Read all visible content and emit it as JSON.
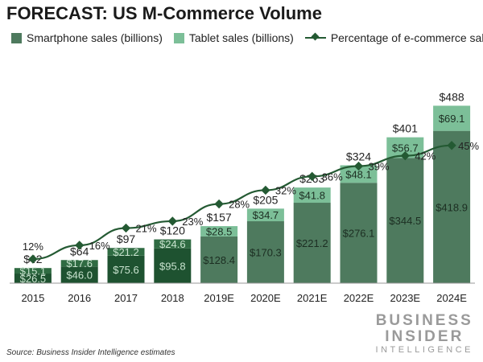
{
  "title": "FORECAST: US M-Commerce Volume",
  "colors": {
    "smartphone": "#4e7a5e",
    "smartphone_dark": "#1e5230",
    "tablet": "#7cbf98",
    "tablet_dark": "#2f6b42",
    "line": "#245a33"
  },
  "legend": {
    "smartphone": "Smartphone sales (billions)",
    "tablet": "Tablet sales (billions)",
    "percentage": "Percentage of e-commerce sales"
  },
  "chart_data": {
    "type": "bar",
    "stacked": true,
    "categories": [
      "2015",
      "2016",
      "2017",
      "2018",
      "2019E",
      "2020E",
      "2021E",
      "2022E",
      "2023E",
      "2024E"
    ],
    "actual_years": [
      "2015",
      "2016",
      "2017",
      "2018"
    ],
    "series": [
      {
        "name": "Smartphone sales (billions)",
        "values": [
          26.5,
          46.0,
          75.6,
          95.8,
          128.4,
          170.3,
          221.2,
          276.1,
          344.5,
          418.9
        ],
        "labels": [
          "$26.5",
          "$46.0",
          "$75.6",
          "$95.8",
          "$128.4",
          "$170.3",
          "$221.2",
          "$276.1",
          "$344.5",
          "$418.9"
        ]
      },
      {
        "name": "Tablet sales (billions)",
        "values": [
          15.1,
          17.6,
          21.2,
          24.6,
          28.5,
          34.7,
          41.8,
          48.1,
          56.7,
          69.1
        ],
        "labels": [
          "$15.1",
          "$17.6",
          "$21.2",
          "$24.6",
          "$28.5",
          "$34.7",
          "$41.8",
          "$48.1",
          "$56.7",
          "$69.1"
        ]
      }
    ],
    "totals": [
      42,
      64,
      97,
      120,
      157,
      205,
      263,
      324,
      401,
      488
    ],
    "total_labels": [
      "$42",
      "$64",
      "$97",
      "$120",
      "$157",
      "$205",
      "$263",
      "$324",
      "$401",
      "$488"
    ],
    "line": {
      "name": "Percentage of e-commerce sales",
      "values": [
        12,
        16,
        21,
        23,
        28,
        32,
        36,
        39,
        42,
        45
      ],
      "labels": [
        "12%",
        "16%",
        "21%",
        "23%",
        "28%",
        "32%",
        "36%",
        "39%",
        "42%",
        "45%"
      ]
    },
    "ylim": [
      0,
      500
    ],
    "line_ylim": [
      0,
      50
    ],
    "grid": false,
    "legend_position": "top"
  },
  "source": "Source: Business Insider Intelligence estimates",
  "logo": {
    "line1": "BUSINESS",
    "line2": "INSIDER",
    "line3": "INTELLIGENCE"
  }
}
